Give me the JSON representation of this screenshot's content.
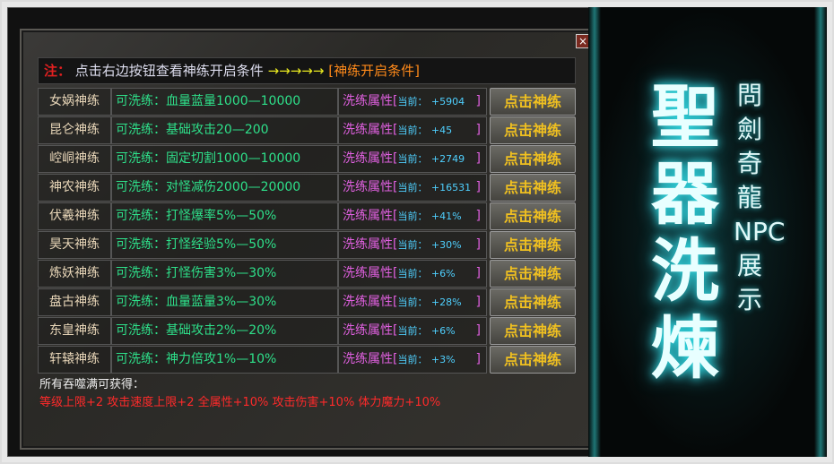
{
  "dialog": {
    "close_label": "×",
    "header": {
      "note": "注：",
      "hint": "点击右边按钮查看神练开启条件",
      "arrows": "→→→→→",
      "condition_button": "[神练开启条件]"
    },
    "attr_label": "洗练属性",
    "current_label": "当前：",
    "button_label": "点击神练",
    "rows": [
      {
        "name": "女娲神练",
        "desc": "可洗练：血量蓝量1000—10000",
        "current": "+5904"
      },
      {
        "name": "昆仑神练",
        "desc": "可洗练：基础攻击20—200",
        "current": "+45"
      },
      {
        "name": "崆峒神练",
        "desc": "可洗练：固定切割1000—10000",
        "current": "+2749"
      },
      {
        "name": "神农神练",
        "desc": "可洗练：对怪减伤2000—20000",
        "current": "+16531"
      },
      {
        "name": "伏羲神练",
        "desc": "可洗练：打怪爆率5%—50%",
        "current": "+41%"
      },
      {
        "name": "昊天神练",
        "desc": "可洗练：打怪经验5%—50%",
        "current": "+30%"
      },
      {
        "name": "炼妖神练",
        "desc": "可洗练：打怪伤害3%—30%",
        "current": "+6%"
      },
      {
        "name": "盘古神练",
        "desc": "可洗练：血量蓝量3%—30%",
        "current": "+28%"
      },
      {
        "name": "东皇神练",
        "desc": "可洗练：基础攻击2%—20%",
        "current": "+6%"
      },
      {
        "name": "轩辕神练",
        "desc": "可洗练：神力倍攻1%—10%",
        "current": "+3%"
      }
    ],
    "footer": {
      "title": "所有吞噬满可获得：",
      "bonus": "等级上限+2 攻击速度上限+2 全属性+10% 攻击伤害+10% 体力魔力+10%"
    }
  },
  "banner": {
    "title": "聖器洗煉",
    "subtitle": "問劍奇龍NPC展示"
  },
  "colors": {
    "accent_teal": "#30d8e0",
    "button_text": "#f0c020",
    "attr": "#e060e0",
    "desc": "#2ee08a",
    "bonus": "#ff2a2a"
  }
}
